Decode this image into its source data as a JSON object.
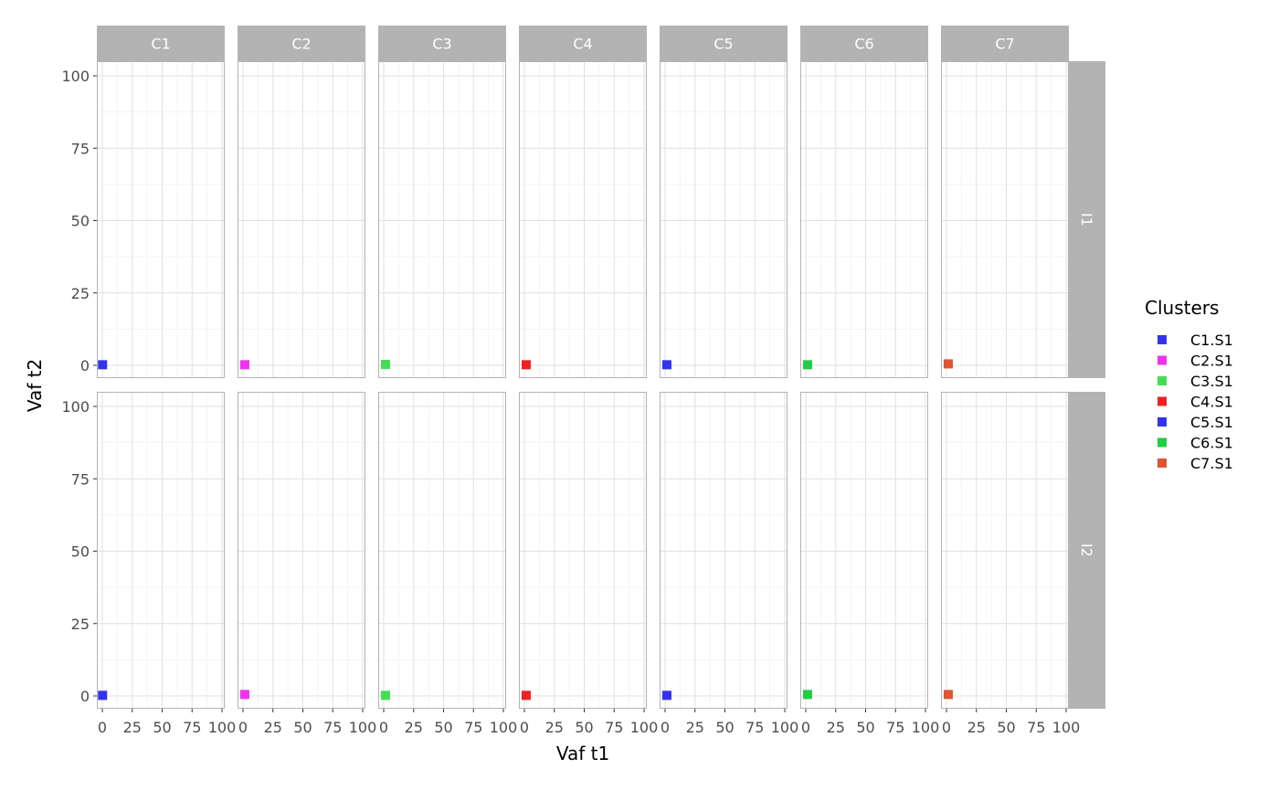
{
  "chart_data": {
    "type": "scatter",
    "xlabel": "Vaf t1",
    "ylabel": "Vaf t2",
    "xlim": [
      0,
      100
    ],
    "ylim": [
      0,
      100
    ],
    "x_ticks": [
      "0",
      "25",
      "50",
      "75",
      "100"
    ],
    "y_ticks": [
      "0",
      "25",
      "50",
      "75",
      "100"
    ],
    "grid": true,
    "facet_cols": [
      "C1",
      "C2",
      "C3",
      "C4",
      "C5",
      "C6",
      "C7"
    ],
    "facet_rows": [
      "I1",
      "I2"
    ],
    "legend": {
      "title": "Clusters",
      "placement": "right",
      "entries": [
        {
          "label": "C1.S1",
          "color": "#3333ee"
        },
        {
          "label": "C2.S1",
          "color": "#ee33ee"
        },
        {
          "label": "C3.S1",
          "color": "#44dd55"
        },
        {
          "label": "C4.S1",
          "color": "#ee2222"
        },
        {
          "label": "C5.S1",
          "color": "#3333ee"
        },
        {
          "label": "C6.S1",
          "color": "#22cc44"
        },
        {
          "label": "C7.S1",
          "color": "#dd5533"
        }
      ]
    },
    "points": [
      {
        "col": "C1",
        "row": "I1",
        "cluster": "C1.S1",
        "x": 0.2,
        "y": 0.2
      },
      {
        "col": "C2",
        "row": "I1",
        "cluster": "C2.S1",
        "x": 1.5,
        "y": 0.2
      },
      {
        "col": "C3",
        "row": "I1",
        "cluster": "C3.S1",
        "x": 1.5,
        "y": 0.3
      },
      {
        "col": "C4",
        "row": "I1",
        "cluster": "C4.S1",
        "x": 1.5,
        "y": 0.2
      },
      {
        "col": "C5",
        "row": "I1",
        "cluster": "C5.S1",
        "x": 1.5,
        "y": 0.2
      },
      {
        "col": "C6",
        "row": "I1",
        "cluster": "C6.S1",
        "x": 1.5,
        "y": 0.2
      },
      {
        "col": "C7",
        "row": "I1",
        "cluster": "C7.S1",
        "x": 1.5,
        "y": 0.5
      },
      {
        "col": "C1",
        "row": "I2",
        "cluster": "C1.S1",
        "x": 0.2,
        "y": 0.2
      },
      {
        "col": "C2",
        "row": "I2",
        "cluster": "C2.S1",
        "x": 1.5,
        "y": 0.5
      },
      {
        "col": "C3",
        "row": "I2",
        "cluster": "C3.S1",
        "x": 1.5,
        "y": 0.2
      },
      {
        "col": "C4",
        "row": "I2",
        "cluster": "C4.S1",
        "x": 1.5,
        "y": 0.2
      },
      {
        "col": "C5",
        "row": "I2",
        "cluster": "C5.S1",
        "x": 1.5,
        "y": 0.2
      },
      {
        "col": "C6",
        "row": "I2",
        "cluster": "C6.S1",
        "x": 1.5,
        "y": 0.5
      },
      {
        "col": "C7",
        "row": "I2",
        "cluster": "C7.S1",
        "x": 1.5,
        "y": 0.5
      }
    ]
  }
}
